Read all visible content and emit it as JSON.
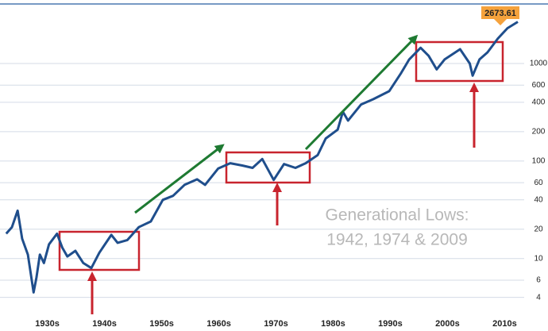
{
  "chart_data": {
    "type": "line",
    "log_y": true,
    "grid": true,
    "x": [
      1927.8,
      1928.8,
      1929.8,
      1930.6,
      1931.6,
      1932.6,
      1933.1,
      1933.7,
      1934.4,
      1935.3,
      1936.7,
      1937.6,
      1938.5,
      1939.9,
      1941.3,
      1942.7,
      1944.1,
      1946.2,
      1947.3,
      1949,
      1951,
      1953.1,
      1955.2,
      1957,
      1959,
      1961.2,
      1962.6,
      1964.9,
      1967,
      1969.1,
      1970.9,
      1972.6,
      1974.6,
      1976.4,
      1978.4,
      1980.2,
      1982.3,
      1983.7,
      1985.8,
      1986.7,
      1987.6,
      1989.9,
      1992,
      1994.8,
      1996.9,
      1998.3,
      2000.3,
      2001.7,
      2003.1,
      2004.5,
      2007.2,
      2008.9,
      2009.4,
      2010.6,
      2012,
      2013.8,
      2015.5,
      2017.3
    ],
    "series": [
      {
        "color": "#1f4e8c",
        "values": [
          18,
          21,
          31,
          16,
          11,
          4.5,
          6.4,
          11,
          9,
          14,
          18,
          13,
          10.5,
          12,
          9,
          8,
          11.5,
          17.5,
          14.5,
          15.5,
          21,
          24,
          40,
          44,
          57,
          65,
          57,
          84,
          95,
          90,
          85,
          105,
          64,
          93,
          85,
          95,
          115,
          170,
          210,
          320,
          260,
          380,
          430,
          520,
          800,
          1100,
          1450,
          1200,
          870,
          1100,
          1400,
          1000,
          750,
          1100,
          1300,
          1800,
          2300,
          2673.61
        ]
      }
    ],
    "xlim": [
      1927,
      2018
    ],
    "xticks": [
      {
        "value": 1935,
        "label": "1930s"
      },
      {
        "value": 1945,
        "label": "1940s"
      },
      {
        "value": 1955,
        "label": "1950s"
      },
      {
        "value": 1965,
        "label": "1960s"
      },
      {
        "value": 1975,
        "label": "1970s"
      },
      {
        "value": 1985,
        "label": "1980s"
      },
      {
        "value": 1995,
        "label": "1990s"
      },
      {
        "value": 2005,
        "label": "2000s"
      },
      {
        "value": 2015,
        "label": "2010s"
      }
    ],
    "ylim": [
      3,
      4000
    ],
    "yticks": [
      4,
      6,
      10,
      20,
      40,
      60,
      100,
      200,
      400,
      600,
      1000
    ],
    "annotations": [
      "Generational Lows:",
      "1942, 1974 & 2009"
    ]
  }
}
